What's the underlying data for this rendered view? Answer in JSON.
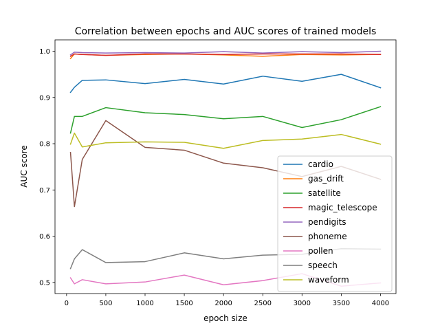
{
  "chart_data": {
    "type": "line",
    "title": "Correlation between epochs and AUC scores of trained models",
    "xlabel": "epoch size",
    "ylabel": "AUC score",
    "x": [
      50,
      100,
      200,
      500,
      1000,
      1500,
      2000,
      2500,
      3000,
      3500,
      4000
    ],
    "xlim": [
      -147.5,
      4197.5
    ],
    "ylim": [
      0.476,
      1.0245
    ],
    "xticks": [
      0,
      500,
      1000,
      1500,
      2000,
      2500,
      3000,
      3500,
      4000
    ],
    "xtick_labels": [
      "0",
      "500",
      "1000",
      "1500",
      "2000",
      "2500",
      "3000",
      "3500",
      "4000"
    ],
    "yticks": [
      0.5,
      0.6,
      0.7,
      0.8,
      0.9,
      1.0
    ],
    "ytick_labels": [
      "0.5",
      "0.6",
      "0.7",
      "0.8",
      "0.9",
      "1.0"
    ],
    "grid": false,
    "legend_position": "lower-right",
    "series": [
      {
        "name": "cardio",
        "color": "#1f77b4",
        "values": [
          0.911,
          0.922,
          0.937,
          0.938,
          0.93,
          0.939,
          0.929,
          0.946,
          0.935,
          0.95,
          0.921
        ]
      },
      {
        "name": "gas_drift",
        "color": "#ff7f0e",
        "values": [
          0.984,
          0.994,
          0.993,
          0.991,
          0.993,
          0.994,
          0.992,
          0.989,
          0.993,
          0.992,
          0.993
        ]
      },
      {
        "name": "satellite",
        "color": "#2ca02c",
        "values": [
          0.823,
          0.859,
          0.859,
          0.878,
          0.867,
          0.863,
          0.854,
          0.859,
          0.835,
          0.852,
          0.88
        ]
      },
      {
        "name": "magic_telescope",
        "color": "#d62728",
        "values": [
          0.989,
          0.994,
          0.993,
          0.991,
          0.994,
          0.994,
          0.993,
          0.994,
          0.994,
          0.994,
          0.993
        ]
      },
      {
        "name": "pendigits",
        "color": "#9467bd",
        "values": [
          0.992,
          0.998,
          0.997,
          0.996,
          0.997,
          0.996,
          0.999,
          0.996,
          0.999,
          0.997,
          1.0
        ]
      },
      {
        "name": "phoneme",
        "color": "#8c564b",
        "values": [
          0.781,
          0.664,
          0.766,
          0.85,
          0.792,
          0.786,
          0.758,
          0.748,
          0.729,
          0.751,
          0.723
        ]
      },
      {
        "name": "pollen",
        "color": "#e377c2",
        "values": [
          0.51,
          0.497,
          0.506,
          0.497,
          0.501,
          0.516,
          0.495,
          0.504,
          0.519,
          0.492,
          0.499
        ]
      },
      {
        "name": "speech",
        "color": "#7f7f7f",
        "values": [
          0.53,
          0.551,
          0.571,
          0.543,
          0.545,
          0.564,
          0.551,
          0.559,
          0.561,
          0.573,
          0.572
        ]
      },
      {
        "name": "waveform",
        "color": "#bcbd22",
        "values": [
          0.799,
          0.823,
          0.793,
          0.802,
          0.804,
          0.803,
          0.79,
          0.807,
          0.81,
          0.82,
          0.799
        ]
      }
    ]
  }
}
